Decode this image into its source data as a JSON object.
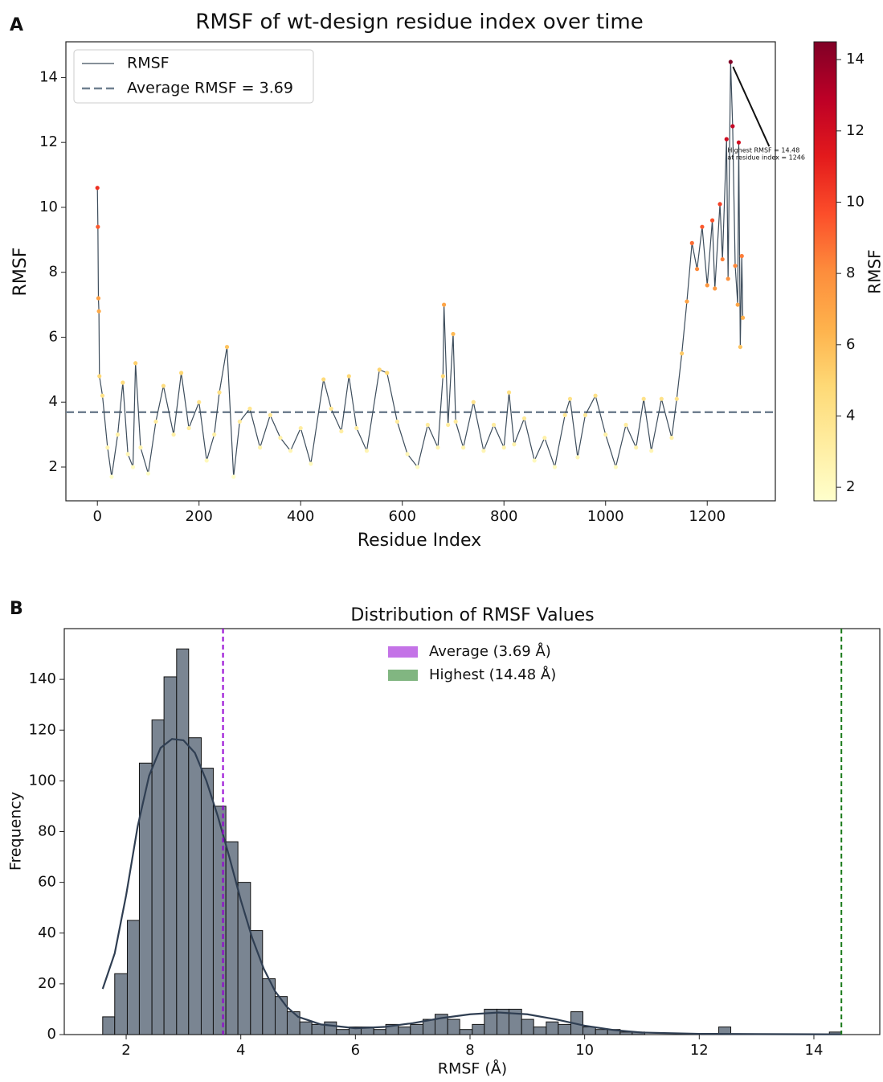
{
  "chart_data": [
    {
      "type": "line",
      "panel_label": "A",
      "title": "RMSF of wt-design residue index over time",
      "x_label": "Residue Index",
      "y_label": "RMSF",
      "x": [
        0,
        1,
        2,
        3,
        4,
        10,
        20,
        28,
        40,
        50,
        60,
        70,
        75,
        85,
        100,
        115,
        130,
        150,
        165,
        180,
        200,
        215,
        230,
        240,
        255,
        268,
        280,
        300,
        320,
        340,
        360,
        380,
        400,
        420,
        445,
        460,
        480,
        495,
        510,
        530,
        555,
        570,
        590,
        610,
        630,
        650,
        670,
        680,
        682,
        690,
        700,
        705,
        720,
        740,
        760,
        780,
        800,
        810,
        820,
        840,
        860,
        880,
        900,
        920,
        930,
        945,
        960,
        980,
        1000,
        1020,
        1040,
        1060,
        1075,
        1090,
        1110,
        1130,
        1140,
        1150,
        1160,
        1170,
        1180,
        1190,
        1200,
        1210,
        1215,
        1225,
        1230,
        1238,
        1241,
        1246,
        1250,
        1255,
        1260,
        1262,
        1265,
        1268,
        1270
      ],
      "series": [
        {
          "name": "RMSF",
          "color": "#3d4d5c",
          "values": [
            10.6,
            9.4,
            7.2,
            6.8,
            4.8,
            4.2,
            2.6,
            1.7,
            3.0,
            4.6,
            2.4,
            2.0,
            5.2,
            2.6,
            1.8,
            3.4,
            4.5,
            3.0,
            4.9,
            3.2,
            4.0,
            2.2,
            3.0,
            4.3,
            5.7,
            1.7,
            3.4,
            3.8,
            2.6,
            3.6,
            2.9,
            2.5,
            3.2,
            2.1,
            4.7,
            3.8,
            3.1,
            4.8,
            3.2,
            2.5,
            5.0,
            4.9,
            3.4,
            2.4,
            2.0,
            3.3,
            2.6,
            4.8,
            7.0,
            3.3,
            6.1,
            3.4,
            2.6,
            4.0,
            2.5,
            3.3,
            2.6,
            4.3,
            2.7,
            3.5,
            2.2,
            2.9,
            2.0,
            3.6,
            4.1,
            2.3,
            3.6,
            4.2,
            3.0,
            2.0,
            3.3,
            2.6,
            4.1,
            2.5,
            4.1,
            2.9,
            4.1,
            5.5,
            7.1,
            8.9,
            8.1,
            9.4,
            7.6,
            9.6,
            7.5,
            10.1,
            8.4,
            12.1,
            7.8,
            14.48,
            12.5,
            8.2,
            7.0,
            12.0,
            5.7,
            8.5,
            6.6
          ]
        }
      ],
      "hlines": [
        {
          "name": "Average RMSF = 3.69",
          "value": 3.69,
          "color": "#708090"
        }
      ],
      "annotation": {
        "text": [
          "Highest RMSF = 14.48",
          "at residue index = 1246"
        ],
        "x": 1246,
        "y": 14.48
      },
      "xlim": [
        -62,
        1334
      ],
      "ylim": [
        0.96,
        15.1
      ],
      "xticks": [
        0,
        200,
        400,
        600,
        800,
        1000,
        1200
      ],
      "yticks": [
        2,
        4,
        6,
        8,
        10,
        12,
        14
      ],
      "colorbar": {
        "label": "RMSF",
        "lim": [
          1.62,
          14.5
        ],
        "ticks": [
          2,
          4,
          6,
          8,
          10,
          12,
          14
        ],
        "colormap": [
          "#ffffcc",
          "#ffeda0",
          "#fed976",
          "#feb24c",
          "#fd8d3c",
          "#fc4e2a",
          "#e31a1c",
          "#bd0026",
          "#800026"
        ]
      }
    },
    {
      "type": "histogram",
      "panel_label": "B",
      "title": "Distribution of RMSF Values",
      "x_label": "RMSF (Å)",
      "y_label": "Frequency",
      "color": "#7a8592",
      "bins": [
        1.59,
        1.8,
        2.02,
        2.23,
        2.45,
        2.66,
        2.88,
        3.09,
        3.31,
        3.52,
        3.74,
        3.95,
        4.17,
        4.38,
        4.6,
        4.81,
        5.03,
        5.24,
        5.46,
        5.67,
        5.89,
        6.1,
        6.32,
        6.53,
        6.75,
        6.96,
        7.18,
        7.39,
        7.61,
        7.82,
        8.04,
        8.25,
        8.47,
        8.68,
        8.9,
        9.11,
        9.33,
        9.54,
        9.76,
        9.97,
        10.19,
        10.4,
        10.62,
        10.83,
        11.05,
        11.26,
        11.48,
        11.69,
        11.91,
        12.12,
        12.34,
        12.55,
        12.77,
        12.98,
        13.2,
        13.41,
        13.63,
        13.84,
        14.06,
        14.27,
        14.48
      ],
      "values": [
        7,
        24,
        45,
        107,
        124,
        141,
        152,
        117,
        105,
        90,
        76,
        60,
        41,
        22,
        15,
        9,
        5,
        4,
        5,
        2,
        3,
        3,
        2,
        4,
        3,
        4,
        6,
        8,
        6,
        2,
        4,
        10,
        10,
        10,
        6,
        3,
        5,
        4,
        9,
        3,
        2,
        2,
        1,
        1,
        0,
        0,
        0,
        0,
        0,
        0,
        3,
        0,
        0,
        0,
        0,
        0,
        0,
        0,
        0,
        1
      ],
      "kde": {
        "color": "#2f3e52",
        "x": [
          1.59,
          1.8,
          2.0,
          2.2,
          2.4,
          2.6,
          2.8,
          3.0,
          3.2,
          3.4,
          3.6,
          3.8,
          4.0,
          4.2,
          4.4,
          4.6,
          4.8,
          5.0,
          5.4,
          6.0,
          6.5,
          7.0,
          7.5,
          8.0,
          8.5,
          9.0,
          9.5,
          10.0,
          10.5,
          11.0,
          12.0,
          13.0,
          14.48
        ],
        "values": [
          18,
          32,
          55,
          82,
          102,
          113,
          116.5,
          116,
          111,
          100,
          86,
          70,
          53,
          38,
          26,
          17,
          11,
          7,
          4,
          2.5,
          3,
          4.5,
          6.5,
          8,
          8.7,
          8,
          6,
          3.5,
          1.8,
          0.8,
          0.3,
          0.2,
          0.1
        ]
      },
      "vlines": [
        {
          "name": "Average (3.69 Å)",
          "value": 3.69,
          "color": "#9400d3"
        },
        {
          "name": "Highest (14.48 Å)",
          "value": 14.48,
          "color": "#1a7a1a"
        }
      ],
      "xlim": [
        0.92,
        15.15
      ],
      "ylim": [
        0,
        160
      ],
      "xticks": [
        2,
        4,
        6,
        8,
        10,
        12,
        14
      ],
      "yticks": [
        0,
        20,
        40,
        60,
        80,
        100,
        120,
        140
      ]
    }
  ]
}
